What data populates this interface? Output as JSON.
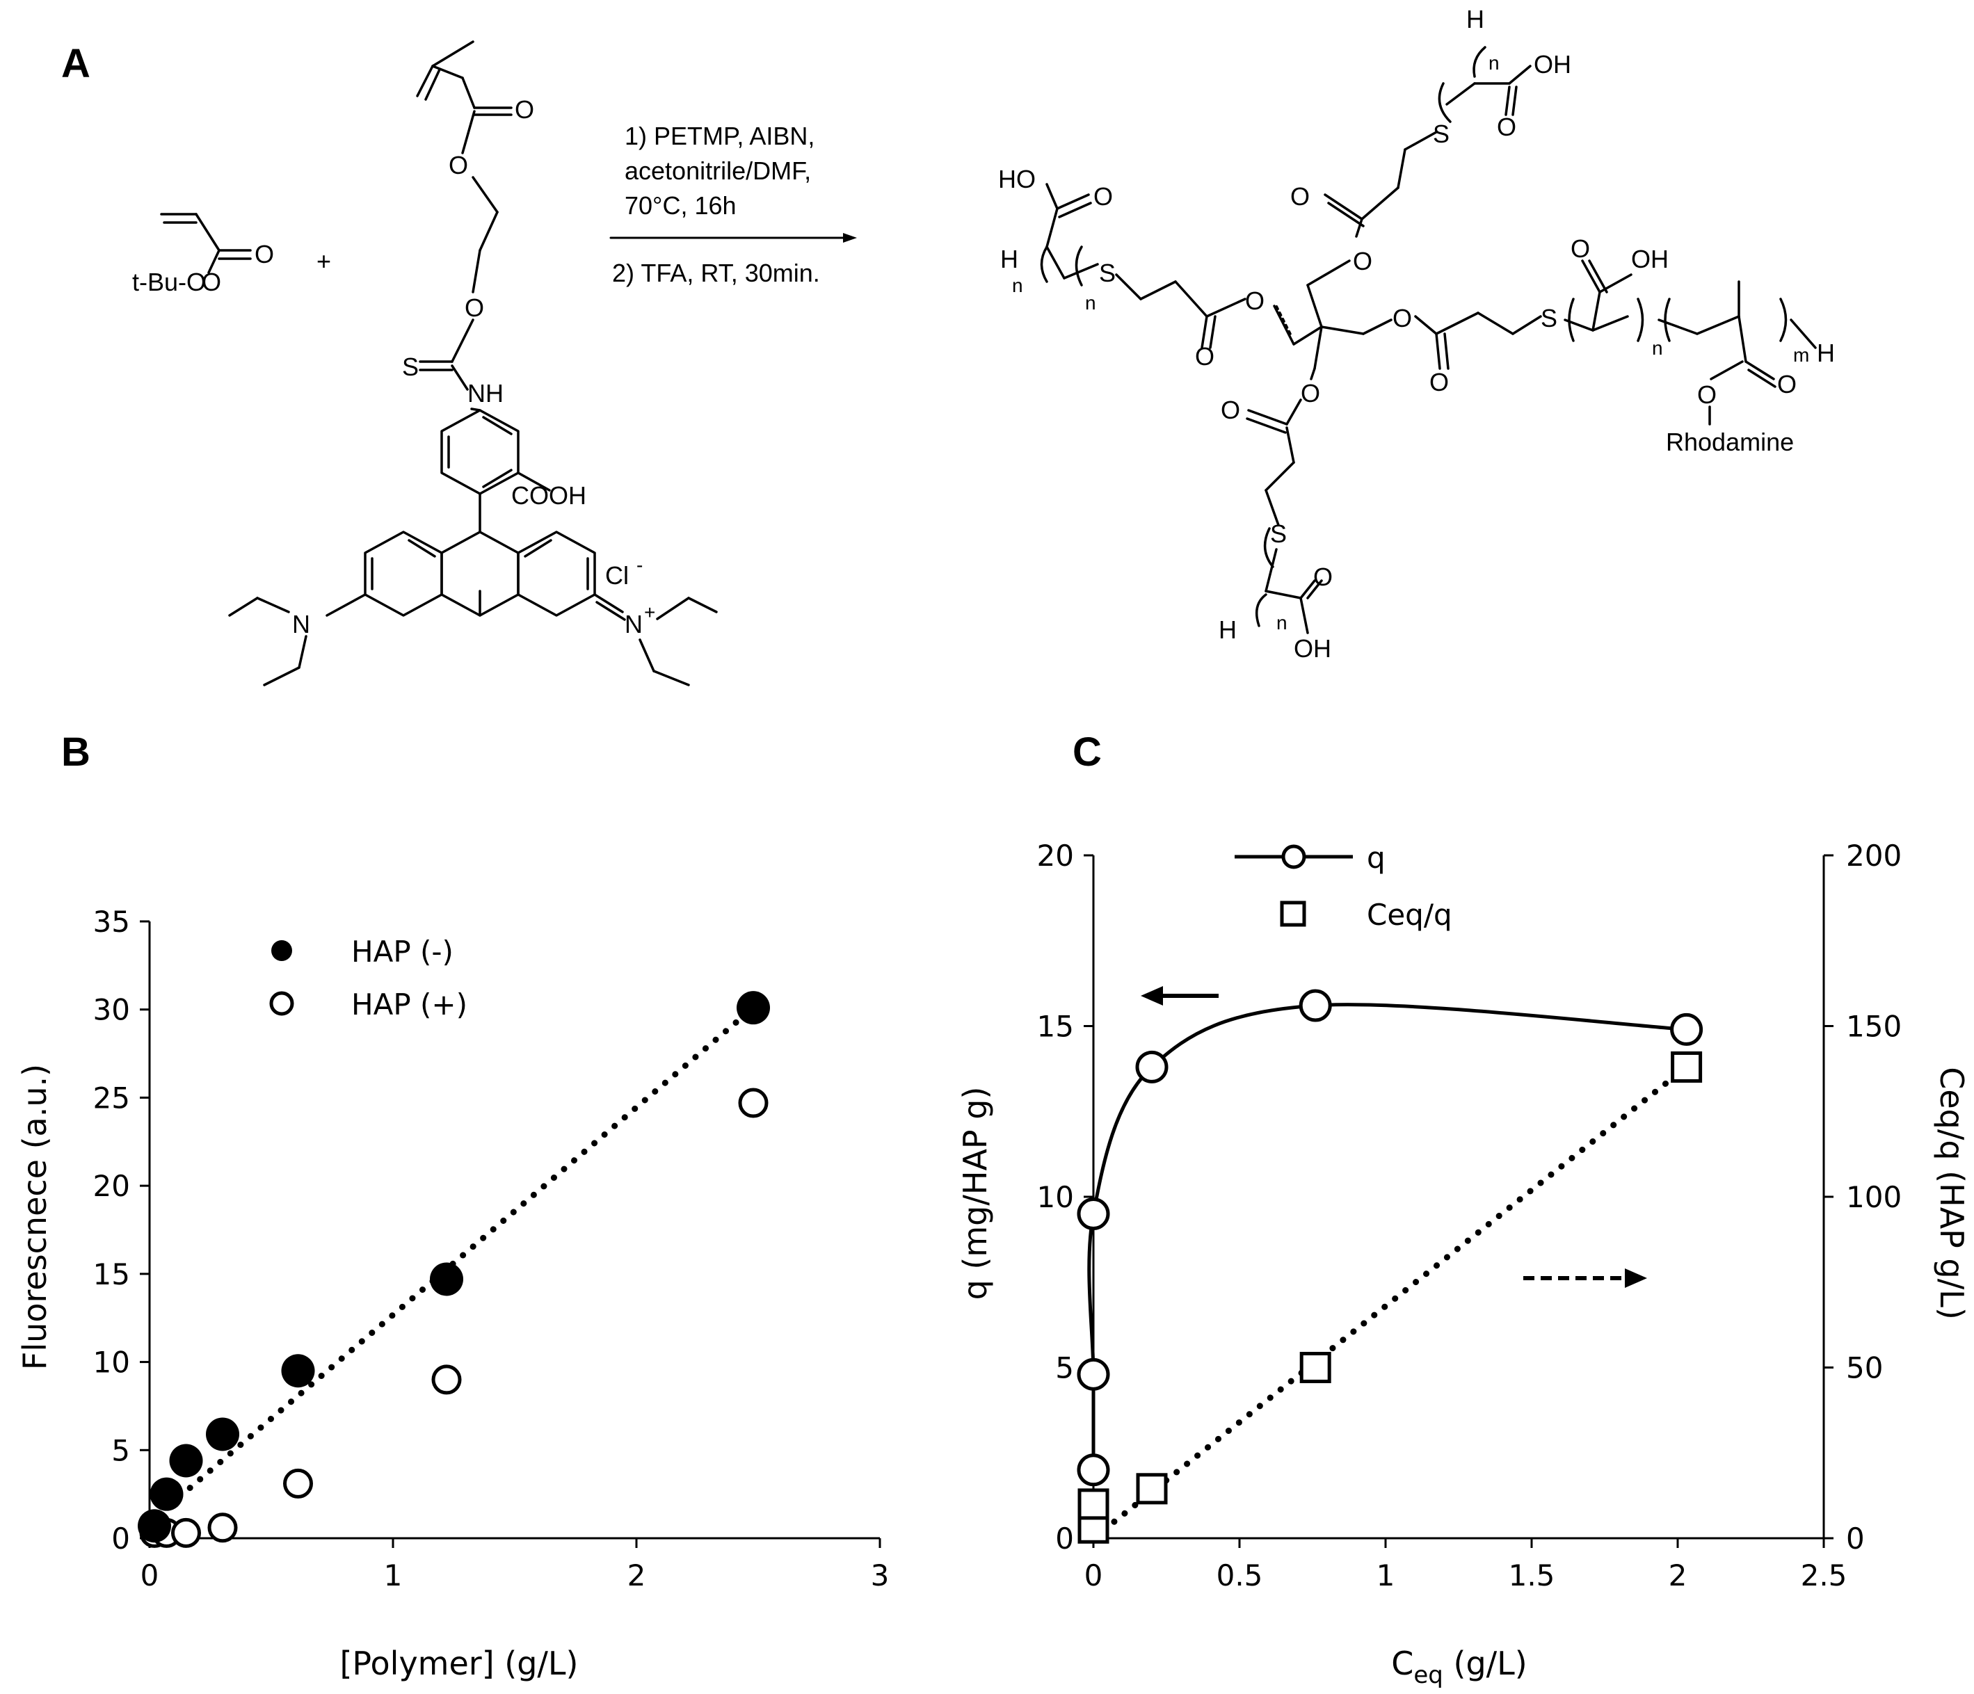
{
  "panels": {
    "a": {
      "letter": "A"
    },
    "b": {
      "letter": "B"
    },
    "c": {
      "letter": "C"
    }
  },
  "scheme": {
    "reagent1_label": "t-Bu-O",
    "plus": "+",
    "conditions": [
      "1) PETMP, AIBN,",
      "acetonitrile/DMF,",
      "70°C, 16h",
      "2) TFA, RT, 30min."
    ],
    "rhodamine_label": "Rhodamine",
    "atom_labels": {
      "O": "O",
      "S": "S",
      "NH": "NH",
      "COOH": "COOH",
      "HO": "HO",
      "OH": "OH",
      "H": "H",
      "n": "n",
      "m": "m",
      "N": "N",
      "Nplus": "N",
      "plus_charge": "+",
      "Cl": "Cl",
      "minus_charge": "-"
    }
  },
  "chart_data": [
    {
      "type": "scatter",
      "panel": "B",
      "xlabel": "[Polymer] (g/L)",
      "ylabel": "Fluorescnece (a.u.)",
      "xlim": [
        0,
        3
      ],
      "ylim": [
        0,
        35
      ],
      "xticks": [
        0,
        1,
        2,
        3
      ],
      "yticks": [
        0,
        5,
        10,
        15,
        20,
        25,
        30,
        35
      ],
      "legend_position": "top-left",
      "series": [
        {
          "name": "HAP (-)",
          "marker": "filled-circle",
          "x": [
            0.02,
            0.07,
            0.15,
            0.3,
            0.61,
            1.22,
            2.48
          ],
          "y": [
            0.7,
            2.5,
            4.4,
            5.9,
            9.5,
            14.7,
            30.1
          ]
        },
        {
          "name": "HAP (+)",
          "marker": "open-circle",
          "x": [
            0.02,
            0.07,
            0.15,
            0.3,
            0.61,
            1.22,
            2.48
          ],
          "y": [
            0.3,
            0.3,
            0.3,
            0.6,
            3.1,
            9.0,
            24.7
          ]
        }
      ],
      "trendline": {
        "style": "dotted",
        "x": [
          0.0,
          2.48
        ],
        "y": [
          0.9,
          30.1
        ]
      }
    },
    {
      "type": "scatter",
      "panel": "C",
      "xlabel_main": "C",
      "xlabel_sub": "eq",
      "xlabel_rest": " (g/L)",
      "ylabel": "q (mg/HAP g)",
      "y2label": "Ceq/q (HAP g/L)",
      "xlim": [
        0,
        2.5
      ],
      "ylim": [
        0,
        20
      ],
      "y2lim": [
        0,
        200
      ],
      "xticks": [
        "0",
        "0.5",
        "1",
        "1.5",
        "2",
        "2.5"
      ],
      "yticks": [
        0,
        5,
        10,
        15,
        20
      ],
      "y2ticks": [
        0,
        50,
        100,
        150,
        200
      ],
      "legend_position": "top-center",
      "series": [
        {
          "name": "q",
          "marker": "open-circle",
          "line": "solid-smooth",
          "axis": "left",
          "x": [
            0.0,
            0.0,
            0.0,
            0.2,
            0.76,
            2.03
          ],
          "y": [
            2.0,
            4.8,
            9.5,
            13.8,
            15.6,
            14.9
          ]
        },
        {
          "name": "Ceq/q",
          "marker": "open-square",
          "line": "dotted",
          "axis": "right",
          "x": [
            0.0,
            0.0,
            0.2,
            0.76,
            2.03
          ],
          "y": [
            3,
            10,
            14.5,
            50,
            138
          ]
        }
      ],
      "arrows": [
        {
          "style": "solid",
          "points_to": "left-axis"
        },
        {
          "style": "dashed",
          "points_to": "right-axis"
        }
      ]
    }
  ]
}
